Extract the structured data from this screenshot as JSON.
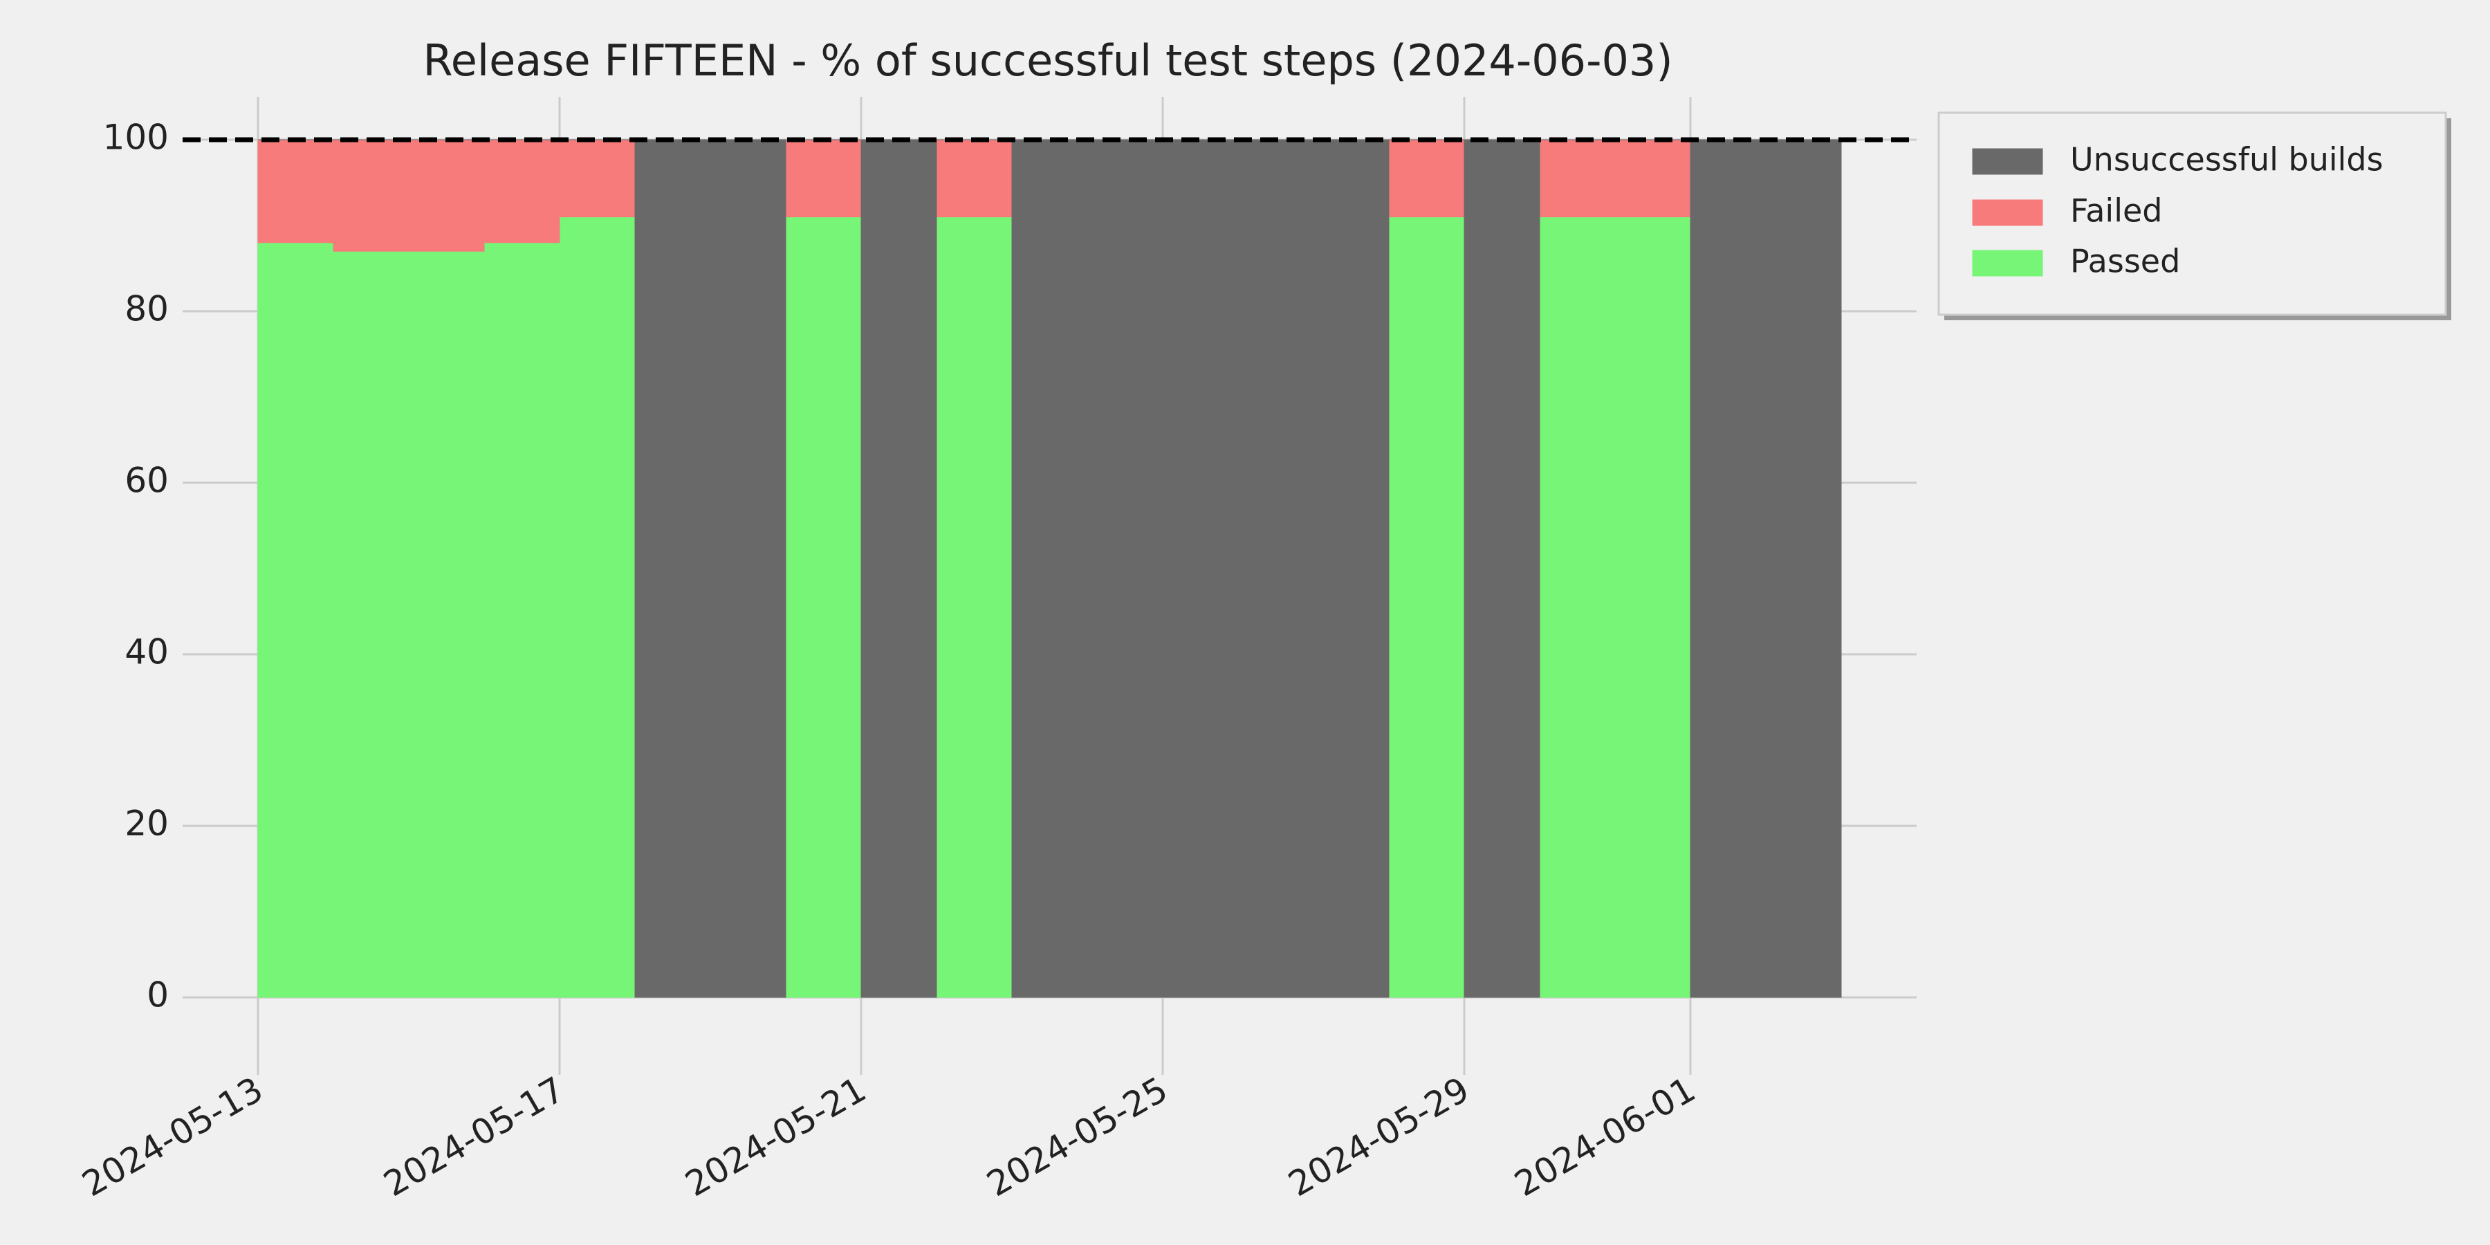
{
  "chart_data": {
    "type": "area",
    "stacked": true,
    "step": true,
    "title": "Release FIFTEEN - % of successful test steps (2024-06-03)",
    "x": [
      "2024-05-13",
      "2024-05-14",
      "2024-05-15",
      "2024-05-16",
      "2024-05-17",
      "2024-05-18",
      "2024-05-19",
      "2024-05-20",
      "2024-05-21",
      "2024-05-22",
      "2024-05-23",
      "2024-05-24",
      "2024-05-25",
      "2024-05-26",
      "2024-05-27",
      "2024-05-28",
      "2024-05-29",
      "2024-05-30",
      "2024-05-31",
      "2024-06-01",
      "2024-06-02"
    ],
    "series": [
      {
        "name": "Passed",
        "color": "#77f577",
        "values": [
          88,
          87,
          87,
          88,
          91,
          0,
          0,
          91,
          0,
          91,
          0,
          0,
          0,
          0,
          0,
          91,
          0,
          91,
          91,
          0,
          0
        ]
      },
      {
        "name": "Failed",
        "color": "#f77b7b",
        "values": [
          12,
          13,
          13,
          12,
          9,
          0,
          0,
          9,
          0,
          9,
          0,
          0,
          0,
          0,
          0,
          9,
          0,
          9,
          9,
          0,
          0
        ]
      },
      {
        "name": "Unsuccessful builds",
        "color": "#696969",
        "values": [
          0,
          0,
          0,
          0,
          0,
          100,
          100,
          0,
          100,
          0,
          100,
          100,
          100,
          100,
          100,
          0,
          100,
          0,
          0,
          100,
          100
        ]
      }
    ],
    "xlim": [
      "2024-05-12",
      "2024-06-04"
    ],
    "xticks": [
      "2024-05-13",
      "2024-05-17",
      "2024-05-21",
      "2024-05-25",
      "2024-05-29",
      "2024-06-01"
    ],
    "ylim": [
      -5,
      105
    ],
    "yticks": [
      0,
      20,
      40,
      60,
      80,
      100
    ],
    "hline": 100,
    "grid": true,
    "legend": "outside-upper-right"
  }
}
